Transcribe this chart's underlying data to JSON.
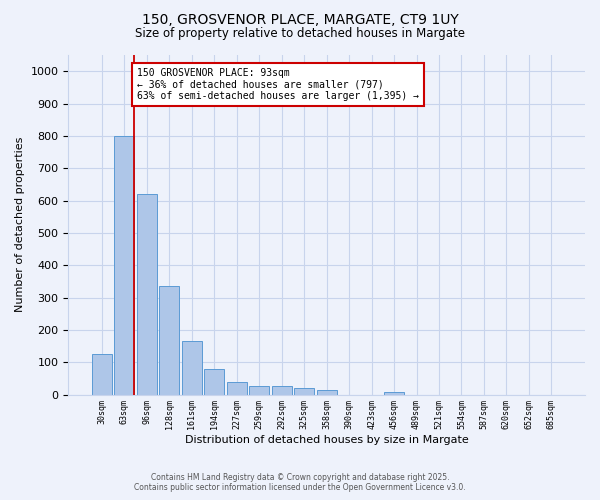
{
  "title1": "150, GROSVENOR PLACE, MARGATE, CT9 1UY",
  "title2": "Size of property relative to detached houses in Margate",
  "xlabel": "Distribution of detached houses by size in Margate",
  "ylabel": "Number of detached properties",
  "bar_labels": [
    "30sqm",
    "63sqm",
    "96sqm",
    "128sqm",
    "161sqm",
    "194sqm",
    "227sqm",
    "259sqm",
    "292sqm",
    "325sqm",
    "358sqm",
    "390sqm",
    "423sqm",
    "456sqm",
    "489sqm",
    "521sqm",
    "554sqm",
    "587sqm",
    "620sqm",
    "652sqm",
    "685sqm"
  ],
  "bar_values": [
    125,
    800,
    620,
    335,
    165,
    80,
    40,
    28,
    25,
    20,
    15,
    0,
    0,
    8,
    0,
    0,
    0,
    0,
    0,
    0,
    0
  ],
  "bar_color": "#aec6e8",
  "bar_edge_color": "#5b9bd5",
  "ylim": [
    0,
    1050
  ],
  "annotation_text": "150 GROSVENOR PLACE: 93sqm\n← 36% of detached houses are smaller (797)\n63% of semi-detached houses are larger (1,395) →",
  "annotation_box_color": "#ffffff",
  "annotation_box_edge": "#cc0000",
  "red_line_color": "#cc0000",
  "footer1": "Contains HM Land Registry data © Crown copyright and database right 2025.",
  "footer2": "Contains public sector information licensed under the Open Government Licence v3.0.",
  "bg_color": "#eef2fb",
  "grid_color": "#c8d4ec"
}
